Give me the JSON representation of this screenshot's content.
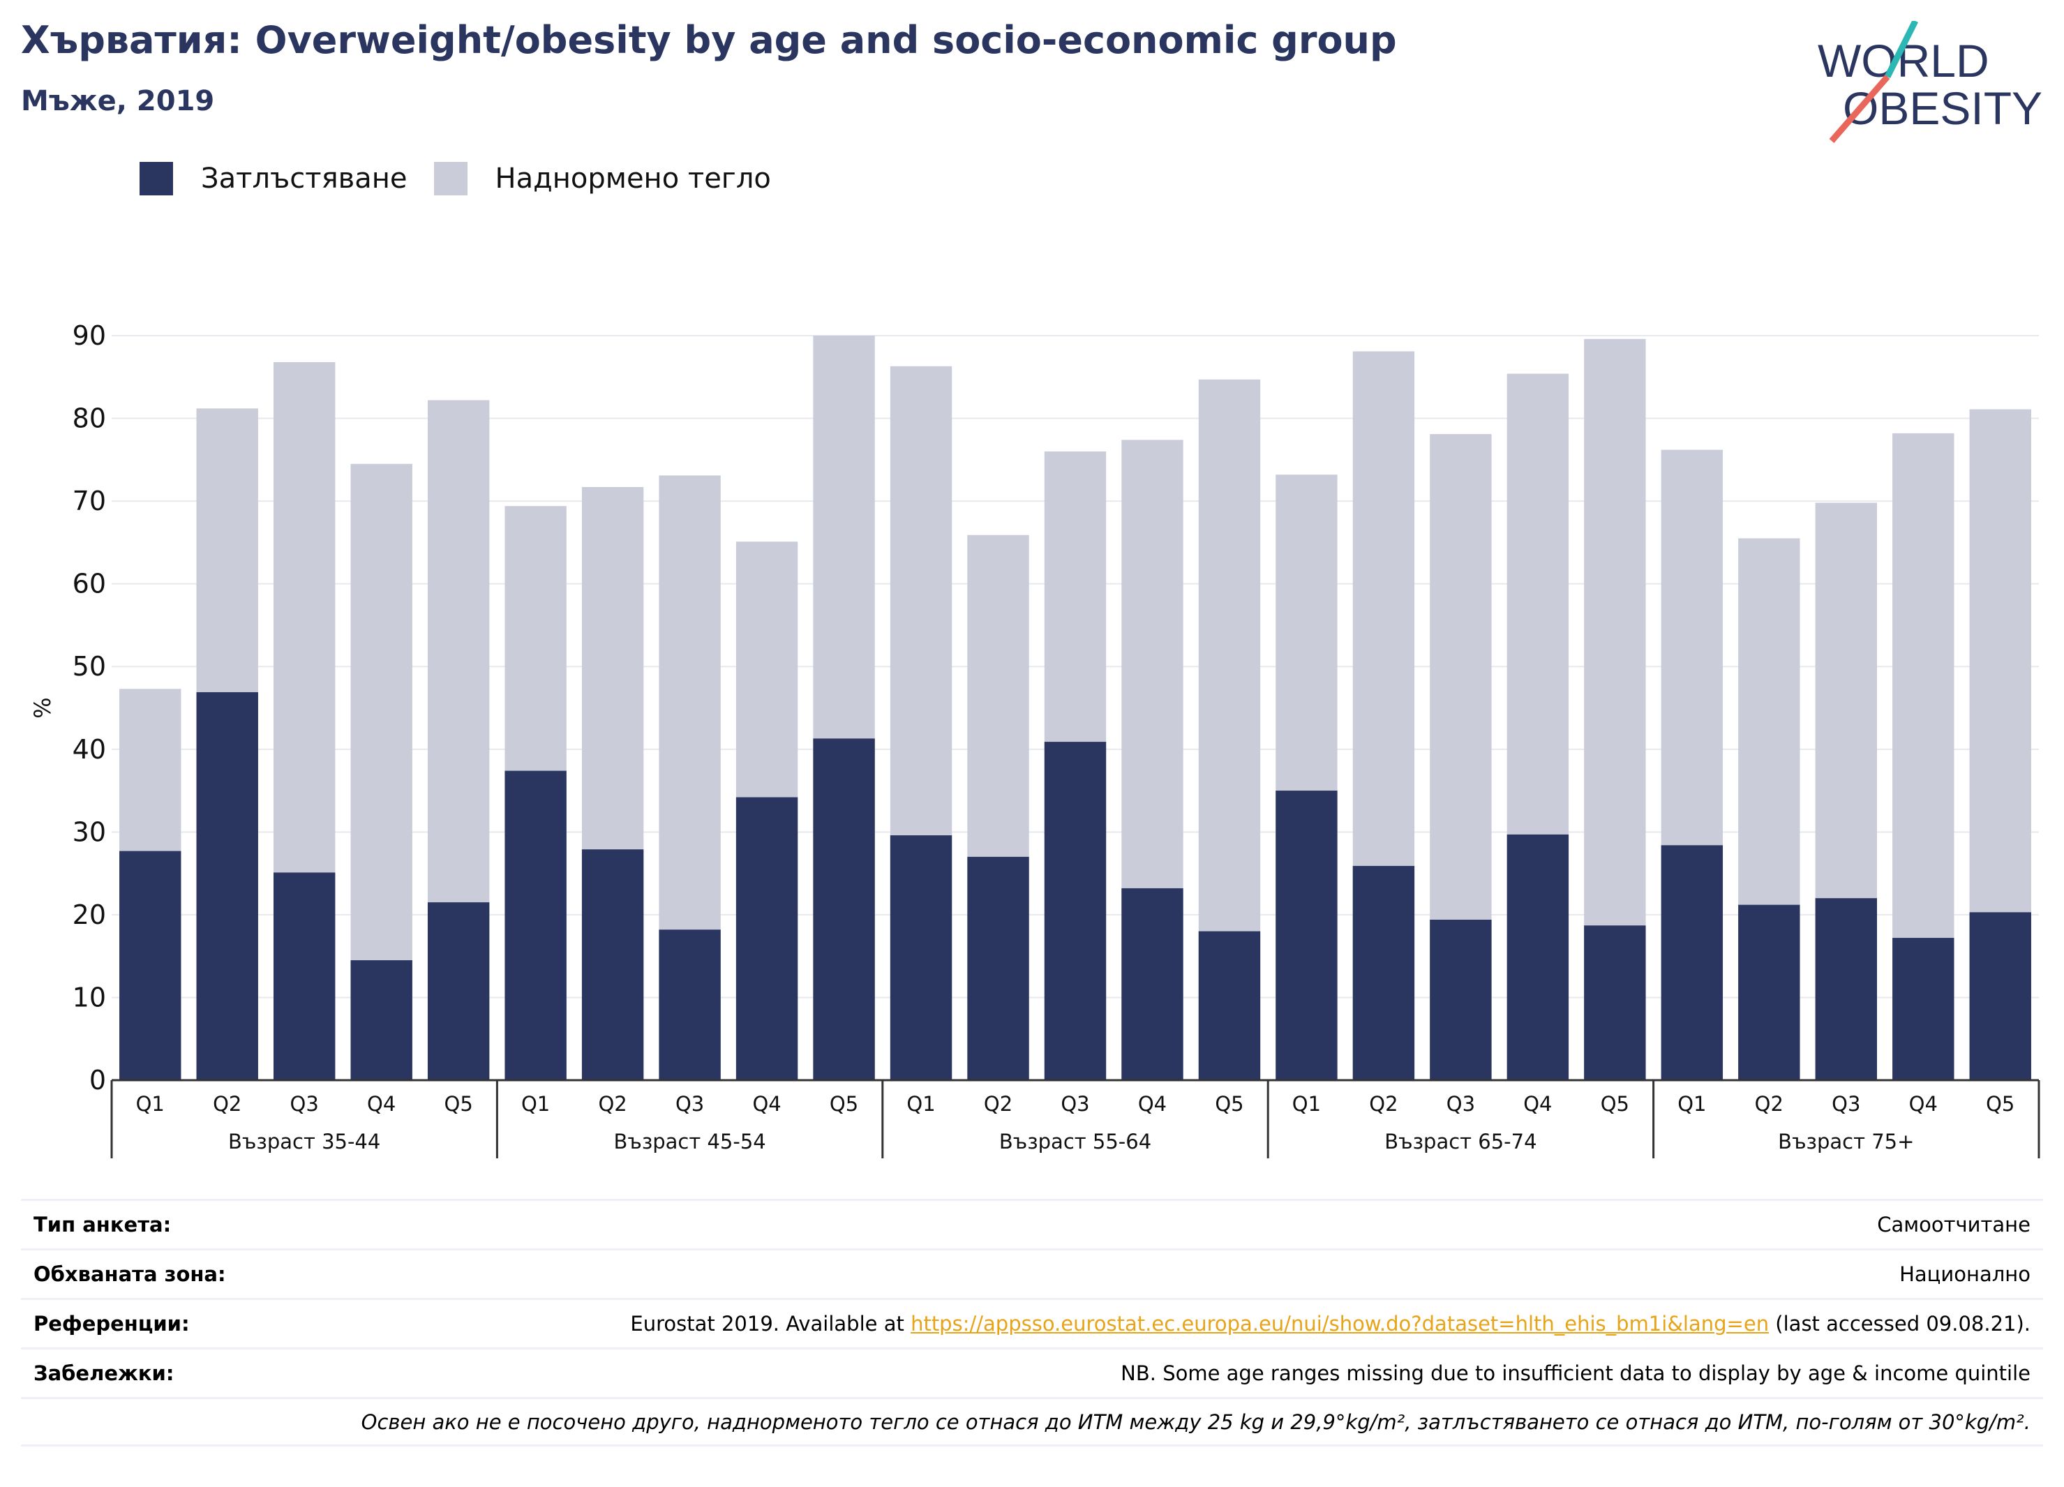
{
  "title": "Хърватия: Overweight/obesity by age and socio-economic group",
  "subtitle": "Мъже, 2019",
  "logo": {
    "line1": "WORLD",
    "line2": "OBESITY"
  },
  "legend": [
    {
      "label": "Затлъстяване",
      "color": "#2a3560"
    },
    {
      "label": "Наднормено тегло",
      "color": "#cacdd9"
    }
  ],
  "chart_data": {
    "type": "bar",
    "stacked": false,
    "ylabel": "%",
    "xlabel": "",
    "ylim": [
      0,
      90
    ],
    "yticks": [
      0,
      10,
      20,
      30,
      40,
      50,
      60,
      70,
      80,
      90
    ],
    "grid": true,
    "legend_position": "top-left",
    "groups": [
      {
        "label": "Възраст 35-44",
        "categories": [
          "Q1",
          "Q2",
          "Q3",
          "Q4",
          "Q5"
        ]
      },
      {
        "label": "Възраст 45-54",
        "categories": [
          "Q1",
          "Q2",
          "Q3",
          "Q4",
          "Q5"
        ]
      },
      {
        "label": "Възраст 55-64",
        "categories": [
          "Q1",
          "Q2",
          "Q3",
          "Q4",
          "Q5"
        ]
      },
      {
        "label": "Възраст 65-74",
        "categories": [
          "Q1",
          "Q2",
          "Q3",
          "Q4",
          "Q5"
        ]
      },
      {
        "label": "Възраст 75+",
        "categories": [
          "Q1",
          "Q2",
          "Q3",
          "Q4",
          "Q5"
        ]
      }
    ],
    "series": [
      {
        "name": "Наднормено тегло",
        "color": "#cacdd9",
        "values": [
          47.3,
          81.2,
          86.8,
          74.5,
          82.2,
          69.4,
          71.7,
          73.1,
          65.1,
          90.0,
          86.3,
          65.9,
          76.0,
          77.4,
          84.7,
          73.2,
          88.1,
          78.1,
          85.4,
          89.6,
          76.2,
          65.5,
          69.8,
          78.2,
          81.1
        ]
      },
      {
        "name": "Затлъстяване",
        "color": "#2a3560",
        "values": [
          27.7,
          46.9,
          25.1,
          14.5,
          21.5,
          37.4,
          27.9,
          18.2,
          34.2,
          41.3,
          29.6,
          27.0,
          40.9,
          23.2,
          18.0,
          35.0,
          25.9,
          19.4,
          29.7,
          18.7,
          28.4,
          21.2,
          22.0,
          17.2,
          20.3
        ]
      }
    ]
  },
  "footer": {
    "survey_label": "Тип анкета:",
    "survey_value": "Самоотчитане",
    "coverage_label": "Обхваната зона:",
    "coverage_value": "Национално",
    "references_label": "Референции:",
    "references_prefix": "Eurostat 2019. Available at ",
    "references_link": "https://appsso.eurostat.ec.europa.eu/nui/show.do?dataset=hlth_ehis_bm1i&lang=en",
    "references_suffix": " (last accessed 09.08.21).",
    "notes_label": "Забележки:",
    "notes_value": "NB. Some age ranges missing due to insufficient data to display by age & income quintile",
    "definition": "Освен ако не е посочено друго, наднорменото тегло се отнася до ИТМ между 25 kg и 29,9°kg/m², затлъстяването се отнася до ИТМ, по-голям от 30°kg/m²."
  }
}
